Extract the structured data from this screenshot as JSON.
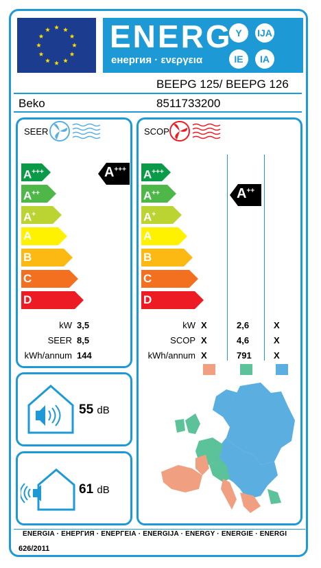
{
  "header": {
    "energ": "ENERG",
    "energ_sub": "енергия · ενεργεια",
    "langs": [
      "Y",
      "IJA",
      "IE",
      "IA"
    ]
  },
  "supplier": "Beko",
  "model": "BEEPG 125/ BEEPG 126",
  "code": "8511733200",
  "seer": {
    "title": "SEER",
    "class": "A",
    "class_sup": "+++",
    "rows": [
      {
        "label": "kW",
        "value": "3,5"
      },
      {
        "label": "SEER",
        "value": "8,5"
      },
      {
        "label": "kWh/annum",
        "value": "144"
      }
    ]
  },
  "scop": {
    "title": "SCOP",
    "class": "A",
    "class_sup": "++",
    "rows": [
      {
        "label": "kW",
        "cols": [
          "X",
          "2,6",
          "X"
        ]
      },
      {
        "label": "SCOP",
        "cols": [
          "X",
          "4,6",
          "X"
        ]
      },
      {
        "label": "kWh/annum",
        "cols": [
          "X",
          "791",
          "X"
        ]
      }
    ],
    "zone_colors": [
      "#f0a080",
      "#5cc29a",
      "#5aaee0"
    ]
  },
  "scale": [
    {
      "letter": "A",
      "sup": "+++",
      "color": "#0b9a48"
    },
    {
      "letter": "A",
      "sup": "++",
      "color": "#4db848"
    },
    {
      "letter": "A",
      "sup": "+",
      "color": "#bcd431"
    },
    {
      "letter": "A",
      "sup": "",
      "color": "#fff200"
    },
    {
      "letter": "B",
      "sup": "",
      "color": "#fcb913"
    },
    {
      "letter": "C",
      "sup": "",
      "color": "#f37021"
    },
    {
      "letter": "D",
      "sup": "",
      "color": "#ed1c24"
    }
  ],
  "noise_indoor": {
    "value": "55",
    "unit": "dB"
  },
  "noise_outdoor": {
    "value": "61",
    "unit": "dB"
  },
  "footer": {
    "languages": "ENERGIA · ЕНЕРГИЯ · ΕΝΕΡΓΕΙΑ · ENERGIJA · ENERGY · ENERGIE · ENERGI",
    "regulation": "626/2011"
  }
}
